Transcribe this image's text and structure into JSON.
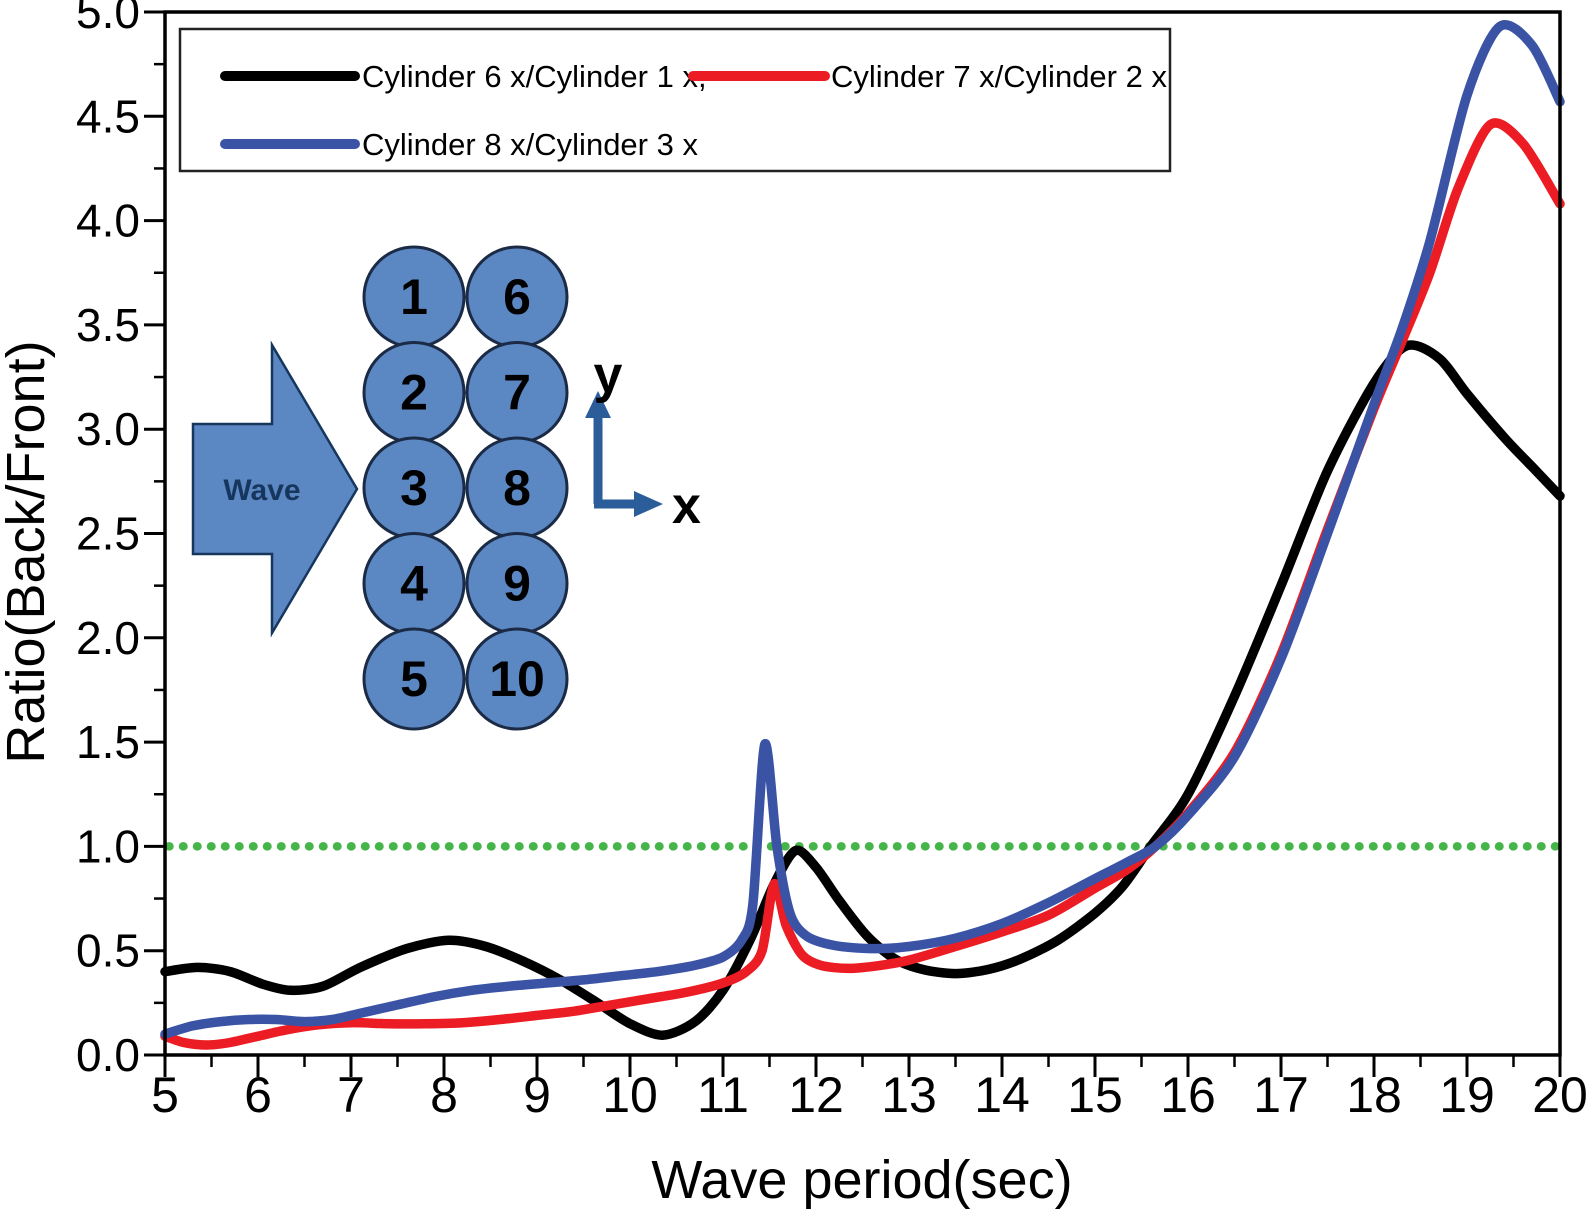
{
  "colors": {
    "black_series": "#000000",
    "red_series": "#ec1c24",
    "blue_series": "#3a53a5",
    "reference_green": "#46b549",
    "cylinder_fill": "#5b87c3",
    "cylinder_border": "#17365d",
    "inset_axis_blue": "#2b5d9b",
    "frame": "#000000",
    "legend_border": "#222222"
  },
  "chart_data": {
    "type": "line",
    "title": "",
    "xlabel": "Wave period(sec)",
    "ylabel": "Ratio(Back/Front)",
    "xlim": [
      5,
      20
    ],
    "ylim": [
      0.0,
      5.0
    ],
    "x_major_ticks": [
      5,
      6,
      7,
      8,
      9,
      10,
      11,
      12,
      13,
      14,
      15,
      16,
      17,
      18,
      19,
      20
    ],
    "x_minor_step": 0.5,
    "y_major_ticks": [
      "0.0",
      "0.5",
      "1.0",
      "1.5",
      "2.0",
      "2.5",
      "3.0",
      "3.5",
      "4.0",
      "4.5",
      "5.0"
    ],
    "y_minor_step": 0.25,
    "grid": false,
    "legend_position": "top-left",
    "reference_line": {
      "y": 1.0,
      "style": "dotted",
      "color": "#46b549"
    },
    "series": [
      {
        "name": "Cylinder 6 x/Cylinder 1 x,",
        "color": "#000000",
        "points": [
          [
            5,
            0.4
          ],
          [
            5.35,
            0.42
          ],
          [
            5.7,
            0.4
          ],
          [
            6.05,
            0.34
          ],
          [
            6.35,
            0.31
          ],
          [
            6.7,
            0.33
          ],
          [
            7.1,
            0.42
          ],
          [
            7.6,
            0.51
          ],
          [
            8.05,
            0.55
          ],
          [
            8.45,
            0.52
          ],
          [
            8.85,
            0.45
          ],
          [
            9.25,
            0.36
          ],
          [
            9.65,
            0.25
          ],
          [
            10.0,
            0.15
          ],
          [
            10.35,
            0.095
          ],
          [
            10.7,
            0.16
          ],
          [
            11.0,
            0.31
          ],
          [
            11.3,
            0.56
          ],
          [
            11.55,
            0.82
          ],
          [
            11.78,
            0.98
          ],
          [
            12.0,
            0.9
          ],
          [
            12.25,
            0.74
          ],
          [
            12.55,
            0.57
          ],
          [
            12.85,
            0.46
          ],
          [
            13.15,
            0.41
          ],
          [
            13.5,
            0.39
          ],
          [
            13.85,
            0.41
          ],
          [
            14.2,
            0.46
          ],
          [
            14.6,
            0.55
          ],
          [
            15.0,
            0.68
          ],
          [
            15.3,
            0.81
          ],
          [
            15.6,
            1.0
          ],
          [
            16.0,
            1.25
          ],
          [
            16.5,
            1.72
          ],
          [
            17.0,
            2.25
          ],
          [
            17.5,
            2.8
          ],
          [
            18.0,
            3.22
          ],
          [
            18.35,
            3.4
          ],
          [
            18.7,
            3.34
          ],
          [
            19.0,
            3.17
          ],
          [
            19.4,
            2.96
          ],
          [
            19.7,
            2.82
          ],
          [
            20,
            2.68
          ]
        ]
      },
      {
        "name": "Cylinder 7 x/Cylinder 2 x",
        "color": "#ec1c24",
        "points": [
          [
            5,
            0.09
          ],
          [
            5.2,
            0.06
          ],
          [
            5.45,
            0.048
          ],
          [
            5.7,
            0.06
          ],
          [
            6.0,
            0.09
          ],
          [
            6.3,
            0.12
          ],
          [
            6.65,
            0.145
          ],
          [
            7.0,
            0.155
          ],
          [
            7.4,
            0.15
          ],
          [
            7.8,
            0.15
          ],
          [
            8.2,
            0.155
          ],
          [
            8.6,
            0.17
          ],
          [
            9.0,
            0.19
          ],
          [
            9.4,
            0.21
          ],
          [
            9.8,
            0.24
          ],
          [
            10.2,
            0.27
          ],
          [
            10.6,
            0.3
          ],
          [
            11.0,
            0.345
          ],
          [
            11.25,
            0.4
          ],
          [
            11.42,
            0.5
          ],
          [
            11.55,
            0.82
          ],
          [
            11.68,
            0.62
          ],
          [
            11.85,
            0.48
          ],
          [
            12.05,
            0.43
          ],
          [
            12.35,
            0.415
          ],
          [
            12.7,
            0.43
          ],
          [
            13.0,
            0.455
          ],
          [
            13.5,
            0.52
          ],
          [
            14.0,
            0.59
          ],
          [
            14.5,
            0.67
          ],
          [
            15.0,
            0.8
          ],
          [
            15.35,
            0.89
          ],
          [
            15.65,
            1.0
          ],
          [
            16.0,
            1.16
          ],
          [
            16.5,
            1.45
          ],
          [
            17.0,
            1.92
          ],
          [
            17.5,
            2.52
          ],
          [
            18.0,
            3.1
          ],
          [
            18.3,
            3.42
          ],
          [
            18.6,
            3.75
          ],
          [
            18.9,
            4.15
          ],
          [
            19.25,
            4.46
          ],
          [
            19.6,
            4.37
          ],
          [
            20,
            4.08
          ]
        ]
      },
      {
        "name": "Cylinder 8 x/Cylinder 3 x",
        "color": "#3a53a5",
        "points": [
          [
            5,
            0.1
          ],
          [
            5.3,
            0.14
          ],
          [
            5.6,
            0.16
          ],
          [
            5.9,
            0.17
          ],
          [
            6.2,
            0.17
          ],
          [
            6.5,
            0.16
          ],
          [
            6.8,
            0.17
          ],
          [
            7.1,
            0.2
          ],
          [
            7.5,
            0.24
          ],
          [
            7.9,
            0.28
          ],
          [
            8.3,
            0.31
          ],
          [
            8.7,
            0.33
          ],
          [
            9.1,
            0.345
          ],
          [
            9.5,
            0.36
          ],
          [
            9.9,
            0.38
          ],
          [
            10.3,
            0.4
          ],
          [
            10.7,
            0.43
          ],
          [
            11.0,
            0.47
          ],
          [
            11.2,
            0.55
          ],
          [
            11.32,
            0.72
          ],
          [
            11.45,
            1.49
          ],
          [
            11.58,
            1.0
          ],
          [
            11.72,
            0.68
          ],
          [
            11.9,
            0.57
          ],
          [
            12.2,
            0.525
          ],
          [
            12.6,
            0.51
          ],
          [
            13.0,
            0.52
          ],
          [
            13.5,
            0.56
          ],
          [
            14.0,
            0.63
          ],
          [
            14.5,
            0.73
          ],
          [
            15.0,
            0.845
          ],
          [
            15.35,
            0.925
          ],
          [
            15.65,
            1.0
          ],
          [
            16.0,
            1.15
          ],
          [
            16.5,
            1.43
          ],
          [
            17.0,
            1.9
          ],
          [
            17.5,
            2.5
          ],
          [
            18.0,
            3.12
          ],
          [
            18.3,
            3.48
          ],
          [
            18.6,
            3.9
          ],
          [
            19.0,
            4.6
          ],
          [
            19.35,
            4.93
          ],
          [
            19.7,
            4.84
          ],
          [
            20,
            4.57
          ]
        ]
      }
    ]
  },
  "legend": {
    "entries": [
      {
        "label": "Cylinder 6 x/Cylinder 1 x,",
        "color": "#000000",
        "row": 0,
        "col": 0
      },
      {
        "label": "Cylinder 7 x/Cylinder 2 x",
        "color": "#ec1c24",
        "row": 0,
        "col": 1
      },
      {
        "label": "Cylinder 8 x/Cylinder 3 x",
        "color": "#3a53a5",
        "row": 1,
        "col": 0
      }
    ]
  },
  "inset": {
    "wave_label": "Wave",
    "cylinder_columns": [
      [
        "1",
        "2",
        "3",
        "4",
        "5"
      ],
      [
        "6",
        "7",
        "8",
        "9",
        "10"
      ]
    ],
    "axes": {
      "x_label": "x",
      "y_label": "y"
    }
  }
}
